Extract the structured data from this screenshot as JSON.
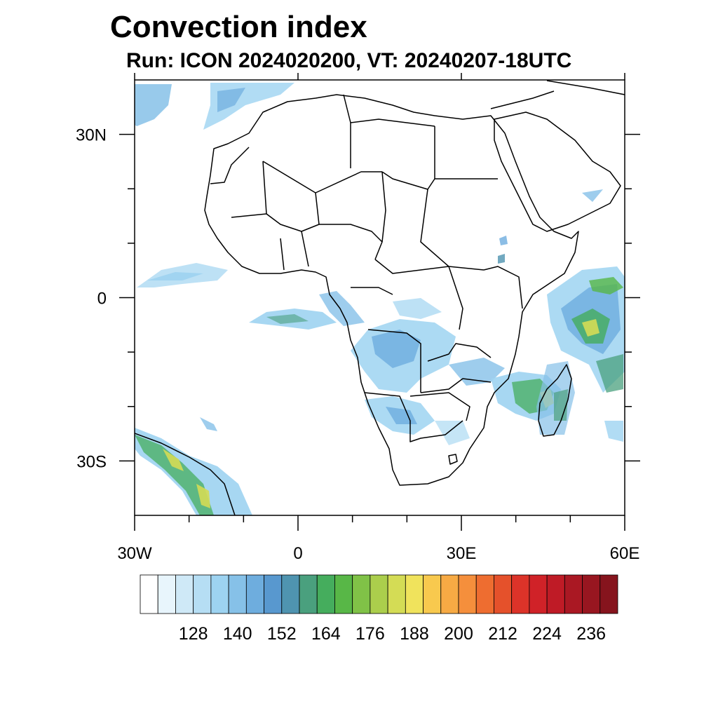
{
  "header": {
    "title": "Convection index",
    "subtitle": "Run: ICON 2024020200,  VT: 20240207-18UTC"
  },
  "map": {
    "region": "Africa",
    "lon_range": [
      -30,
      60
    ],
    "lat_range": [
      -40,
      40
    ],
    "x_ticks": [
      {
        "lon": -30,
        "label": "30W"
      },
      {
        "lon": 0,
        "label": "0"
      },
      {
        "lon": 30,
        "label": "30E"
      },
      {
        "lon": 60,
        "label": "60E"
      }
    ],
    "y_ticks": [
      {
        "lat": 30,
        "label": "30N"
      },
      {
        "lat": 0,
        "label": "0"
      },
      {
        "lat": -30,
        "label": "30S"
      }
    ],
    "minor_x_ticks": [
      -20,
      -10,
      10,
      20,
      40,
      50
    ],
    "minor_y_ticks": [
      20,
      10,
      -10,
      -20
    ],
    "coastline_color": "#000000",
    "ocean_color": "#ffffff",
    "land_color": "#ffffff"
  },
  "colorbar": {
    "labels": [
      "128",
      "140",
      "152",
      "164",
      "176",
      "188",
      "200",
      "212",
      "224",
      "236"
    ],
    "colors": [
      "#ffffff",
      "#e8f5fc",
      "#cfe9f7",
      "#b6def4",
      "#9dd3f1",
      "#86c1e8",
      "#6eadde",
      "#5898cf",
      "#4f94b0",
      "#4aa07e",
      "#45ad5d",
      "#58b747",
      "#80c247",
      "#abce4c",
      "#d4dc55",
      "#f0e35c",
      "#f8c94e",
      "#f7aa44",
      "#f58f3c",
      "#ee6d30",
      "#e5512b",
      "#dc3329",
      "#d02228",
      "#bf1b26",
      "#aa1823",
      "#981620",
      "#86141d"
    ]
  }
}
